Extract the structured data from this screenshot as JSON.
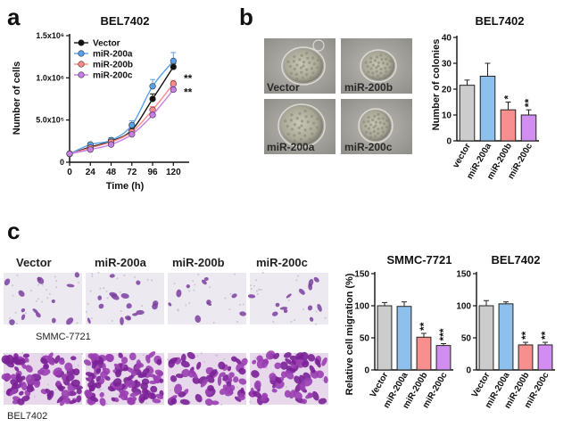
{
  "panels": {
    "a": {
      "letter": "a"
    },
    "b": {
      "letter": "b"
    },
    "c": {
      "letter": "c"
    }
  },
  "colors": {
    "Vector": "#111111",
    "miR-200a": "#5aa0e6",
    "miR-200b": "#ff8a8a",
    "miR-200c": "#c77ee6",
    "Vector_bar": "#cccccc",
    "miR-200a_bar": "#8ec0ee",
    "miR-200b_bar": "#f78f8f",
    "miR-200c_bar": "#d28df0"
  },
  "panel_b_images": {
    "labels": [
      "Vector",
      "miR-200b",
      "miR-200a",
      "miR-200c"
    ]
  },
  "panel_c_images": {
    "column_labels": [
      "Vector",
      "miR-200a",
      "miR-200b",
      "miR-200c"
    ],
    "row_labels": [
      "SMMC-7721",
      "BEL7402"
    ]
  },
  "chart_data": [
    {
      "id": "growth",
      "type": "line",
      "title": "BEL7402",
      "xlabel": "Time (h)",
      "ylabel": "Number of cells",
      "x": [
        0,
        24,
        48,
        72,
        96,
        120
      ],
      "xticks": [
        "0",
        "24",
        "48",
        "72",
        "96",
        "120"
      ],
      "ylim": [
        0,
        1500000
      ],
      "yticks": [
        {
          "value": 0,
          "label": "0"
        },
        {
          "value": 500000,
          "label": "5.0x10⁵"
        },
        {
          "value": 1000000,
          "label": "1.0x10⁶"
        },
        {
          "value": 1500000,
          "label": "1.5x10⁶"
        }
      ],
      "series": [
        {
          "name": "Vector",
          "marker": "circle",
          "values": [
            100000,
            180000,
            250000,
            380000,
            750000,
            1130000
          ],
          "errors": [
            10000,
            20000,
            20000,
            30000,
            60000,
            40000
          ]
        },
        {
          "name": "miR-200a",
          "marker": "circle",
          "values": [
            100000,
            210000,
            260000,
            440000,
            900000,
            1200000
          ],
          "errors": [
            10000,
            20000,
            30000,
            50000,
            80000,
            100000
          ]
        },
        {
          "name": "miR-200b",
          "marker": "circle",
          "values": [
            100000,
            170000,
            240000,
            360000,
            620000,
            930000
          ],
          "errors": [
            10000,
            20000,
            20000,
            30000,
            40000,
            40000
          ]
        },
        {
          "name": "miR-200c",
          "marker": "circle",
          "values": [
            100000,
            150000,
            210000,
            330000,
            560000,
            860000
          ],
          "errors": [
            10000,
            20000,
            20000,
            30000,
            40000,
            40000
          ]
        }
      ],
      "annotations": [
        "**",
        "**"
      ],
      "legend": "top-left"
    },
    {
      "id": "colonies",
      "type": "bar",
      "title": "BEL7402",
      "ylabel": "Number of colonies",
      "categories": [
        "vector",
        "miR-200a",
        "miR-200b",
        "miR-200c"
      ],
      "values": [
        21.5,
        25,
        12,
        10
      ],
      "errors": [
        2,
        5,
        3,
        2
      ],
      "significance": [
        "",
        "",
        "*",
        "**"
      ],
      "ylim": [
        0,
        40
      ],
      "yticks": [
        "0",
        "10",
        "20",
        "30",
        "40"
      ]
    },
    {
      "id": "migration_smmc",
      "type": "bar",
      "title": "SMMC-7721",
      "ylabel": "Relative cell migration (%)",
      "categories": [
        "Vector",
        "miR-200a",
        "miR-200b",
        "miR-200c"
      ],
      "values": [
        100,
        99,
        51,
        38
      ],
      "errors": [
        5,
        7,
        6,
        3
      ],
      "significance": [
        "",
        "",
        "**",
        "***"
      ],
      "ylim": [
        0,
        150
      ],
      "yticks": [
        "0",
        "50",
        "100",
        "150"
      ]
    },
    {
      "id": "migration_bel",
      "type": "bar",
      "title": "BEL7402",
      "ylabel": "",
      "categories": [
        "Vector",
        "miR-200a",
        "miR-200b",
        "miR-200c"
      ],
      "values": [
        100,
        103,
        39,
        39
      ],
      "errors": [
        8,
        3,
        4,
        4
      ],
      "significance": [
        "",
        "",
        "**",
        "**"
      ],
      "ylim": [
        0,
        150
      ],
      "yticks": [
        "0",
        "50",
        "100",
        "150"
      ]
    }
  ]
}
